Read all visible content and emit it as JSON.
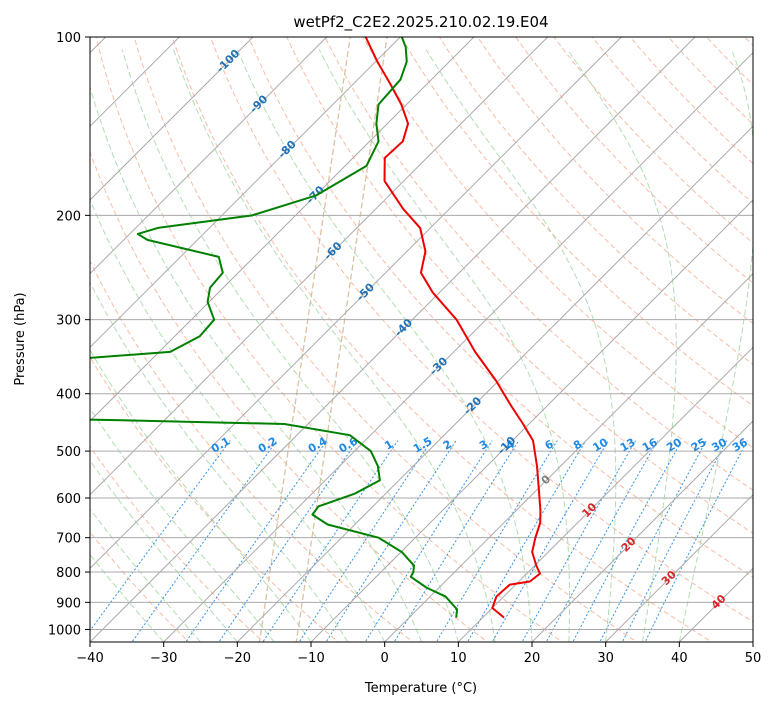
{
  "chart_data": {
    "type": "line",
    "chart_kind": "skew-t log-p diagram",
    "title": "wetPf2_C2E2.2025.210.02.19.E04",
    "xlabel": "Temperature (°C)",
    "ylabel": "Pressure (hPa)",
    "xlim": [
      -40,
      50
    ],
    "ylim": [
      1050,
      100
    ],
    "y_scale": "log",
    "grid": true,
    "x_ticks": [
      -40,
      -30,
      -20,
      -10,
      0,
      10,
      20,
      30,
      40,
      50
    ],
    "x_tick_labels": [
      "−40",
      "−30",
      "−20",
      "−10",
      "0",
      "10",
      "20",
      "30",
      "40",
      "50"
    ],
    "y_ticks": [
      100,
      200,
      300,
      400,
      500,
      600,
      700,
      800,
      900,
      1000
    ],
    "y_tick_labels": [
      "100",
      "200",
      "300",
      "400",
      "500",
      "600",
      "700",
      "800",
      "900",
      "1000"
    ],
    "series": [
      {
        "role": "temperature",
        "color": "#ee0000",
        "points": [
          {
            "p": 955,
            "t": 12.9
          },
          {
            "p": 920,
            "t": 10.0
          },
          {
            "p": 880,
            "t": 9.0
          },
          {
            "p": 840,
            "t": 9.2
          },
          {
            "p": 830,
            "t": 11.5
          },
          {
            "p": 805,
            "t": 11.8
          },
          {
            "p": 780,
            "t": 10.2
          },
          {
            "p": 740,
            "t": 7.8
          },
          {
            "p": 700,
            "t": 6.3
          },
          {
            "p": 660,
            "t": 4.9
          },
          {
            "p": 630,
            "t": 3.3
          },
          {
            "p": 580,
            "t": 0.2
          },
          {
            "p": 530,
            "t": -3.2
          },
          {
            "p": 480,
            "t": -7.2
          },
          {
            "p": 450,
            "t": -10.8
          },
          {
            "p": 420,
            "t": -14.8
          },
          {
            "p": 380,
            "t": -20.4
          },
          {
            "p": 340,
            "t": -27.1
          },
          {
            "p": 300,
            "t": -34.0
          },
          {
            "p": 270,
            "t": -40.9
          },
          {
            "p": 250,
            "t": -45.2
          },
          {
            "p": 230,
            "t": -47.5
          },
          {
            "p": 210,
            "t": -51.4
          },
          {
            "p": 195,
            "t": -56.3
          },
          {
            "p": 175,
            "t": -62.6
          },
          {
            "p": 160,
            "t": -65.7
          },
          {
            "p": 150,
            "t": -65.5
          },
          {
            "p": 140,
            "t": -67.2
          },
          {
            "p": 130,
            "t": -70.7
          },
          {
            "p": 120,
            "t": -75.0
          },
          {
            "p": 110,
            "t": -79.8
          },
          {
            "p": 100,
            "t": -84.7
          }
        ]
      },
      {
        "role": "dewpoint",
        "color": "#008000",
        "points": [
          {
            "p": 955,
            "t": 6.4
          },
          {
            "p": 925,
            "t": 5.4
          },
          {
            "p": 880,
            "t": 2.1
          },
          {
            "p": 850,
            "t": -1.7
          },
          {
            "p": 815,
            "t": -5.3
          },
          {
            "p": 800,
            "t": -5.6
          },
          {
            "p": 780,
            "t": -6.4
          },
          {
            "p": 740,
            "t": -9.9
          },
          {
            "p": 700,
            "t": -15.0
          },
          {
            "p": 665,
            "t": -23.7
          },
          {
            "p": 640,
            "t": -27.1
          },
          {
            "p": 620,
            "t": -27.4
          },
          {
            "p": 590,
            "t": -24.2
          },
          {
            "p": 560,
            "t": -22.6
          },
          {
            "p": 530,
            "t": -24.8
          },
          {
            "p": 500,
            "t": -27.8
          },
          {
            "p": 470,
            "t": -32.8
          },
          {
            "p": 450,
            "t": -43.2
          },
          {
            "p": 440,
            "t": -78.5
          },
          {
            "p": 440,
            "t": -80.5
          },
          {
            "p": 350,
            "t": -80.9
          },
          {
            "p": 340,
            "t": -68.5
          },
          {
            "p": 320,
            "t": -66.6
          },
          {
            "p": 300,
            "t": -66.9
          },
          {
            "p": 280,
            "t": -70.2
          },
          {
            "p": 265,
            "t": -71.8
          },
          {
            "p": 250,
            "t": -72.1
          },
          {
            "p": 235,
            "t": -74.8
          },
          {
            "p": 220,
            "t": -86.8
          },
          {
            "p": 215,
            "t": -88.9
          },
          {
            "p": 210,
            "t": -87.0
          },
          {
            "p": 200,
            "t": -75.9
          },
          {
            "p": 185,
            "t": -69.9
          },
          {
            "p": 165,
            "t": -67.1
          },
          {
            "p": 150,
            "t": -68.8
          },
          {
            "p": 140,
            "t": -71.5
          },
          {
            "p": 130,
            "t": -73.8
          },
          {
            "p": 118,
            "t": -74.2
          },
          {
            "p": 110,
            "t": -75.8
          },
          {
            "p": 104,
            "t": -77.9
          },
          {
            "p": 100,
            "t": -79.8
          }
        ]
      }
    ],
    "mixing_ratio_labels": [
      "0.1",
      "0.2",
      "0.4",
      "0.6",
      "1",
      "1.5",
      "2",
      "3",
      "4",
      "6",
      "8",
      "10",
      "13",
      "16",
      "20",
      "25",
      "30",
      "36"
    ],
    "moist_adiabat_labels": [
      "-100",
      "-90",
      "-80",
      "-70",
      "-60",
      "-50",
      "-40",
      "-30",
      "-20",
      "-10",
      "0",
      "10",
      "20",
      "30",
      "40"
    ],
    "colors": {
      "isotherm": "#aaaaaa",
      "dry_adiabat": "#f4a58a",
      "moist_adiabat": "#9fd49f",
      "mixing_ratio": "#1e88e5",
      "mixing_ratio_text": "#1e88e5",
      "cold_label": "#2271b4",
      "zero_label": "#7f7f7f",
      "warm_label": "#d62728",
      "temperature_line": "#ee0000",
      "dewpoint_line": "#008000",
      "dendritic": "#d2b48c"
    }
  }
}
